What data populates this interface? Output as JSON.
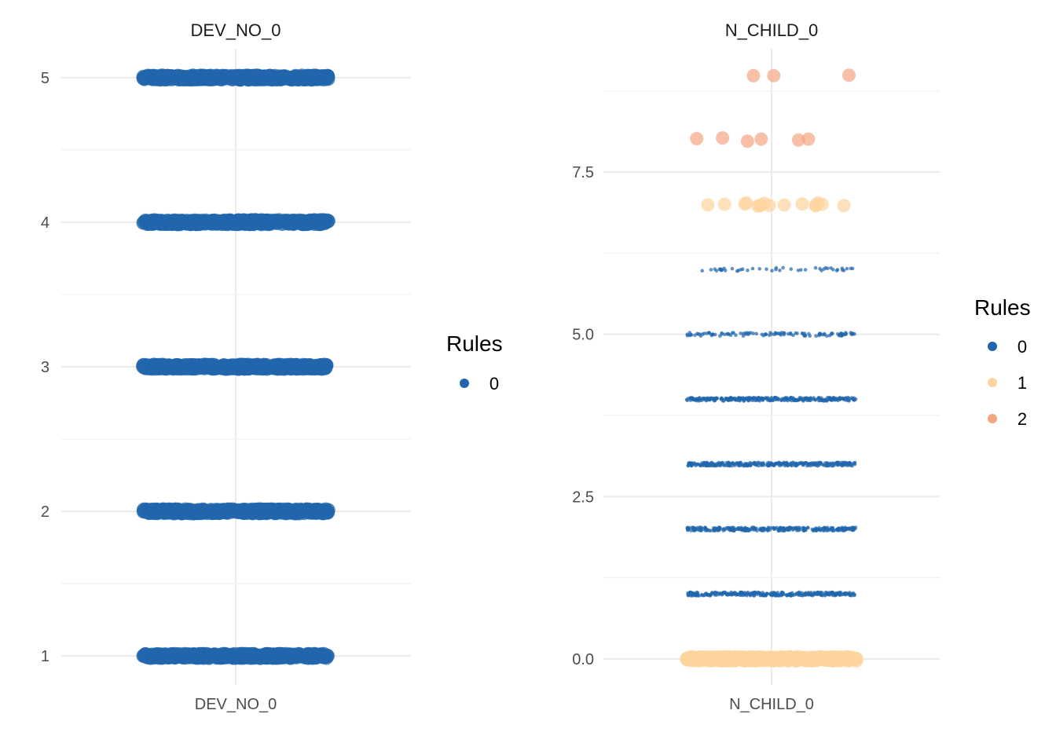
{
  "chart_data": [
    {
      "type": "scatter",
      "title": "DEV_NO_0",
      "xlabel": "DEV_NO_0",
      "ylabel": "",
      "yticks": [
        1,
        2,
        3,
        4,
        5
      ],
      "ylim": [
        0.8,
        5.2
      ],
      "grid": true,
      "legend": {
        "title": "Rules",
        "position": "right",
        "entries": [
          {
            "label": "0",
            "color": "#2166ac"
          }
        ]
      },
      "series": [
        {
          "rule": "0",
          "color": "#2166ac",
          "y_values": [
            1,
            2,
            3,
            4,
            5
          ],
          "points_per_level": 400,
          "size": "large"
        }
      ]
    },
    {
      "type": "scatter",
      "title": "N_CHILD_0",
      "xlabel": "N_CHILD_0",
      "ylabel": "",
      "yticks": [
        0.0,
        2.5,
        5.0,
        7.5
      ],
      "ytick_labels": [
        "0.0",
        "2.5",
        "5.0",
        "7.5"
      ],
      "ylim": [
        -0.4,
        9.4
      ],
      "grid": true,
      "legend": {
        "title": "Rules",
        "position": "right",
        "entries": [
          {
            "label": "0",
            "color": "#2166ac"
          },
          {
            "label": "1",
            "color": "#fdd49e"
          },
          {
            "label": "2",
            "color": "#f4a582"
          }
        ]
      },
      "series": [
        {
          "rule": "1",
          "color": "#fdd49e",
          "y_values": [
            0
          ],
          "points_per_level": 300,
          "size": "large"
        },
        {
          "rule": "0",
          "color": "#2166ac",
          "y_values": [
            1,
            2,
            3,
            4
          ],
          "points_per_level": 300,
          "size": "small"
        },
        {
          "rule": "0",
          "color": "#2166ac",
          "y_values": [
            5
          ],
          "points_per_level": 110,
          "size": "small"
        },
        {
          "rule": "0",
          "color": "#2166ac",
          "y_values": [
            6
          ],
          "points_per_level": 45,
          "size": "small"
        },
        {
          "rule": "1",
          "color": "#fdd49e",
          "y_values": [
            7
          ],
          "points_per_level": 16,
          "size": "medium"
        },
        {
          "rule": "2",
          "color": "#f4a582",
          "y_values": [
            8
          ],
          "points_per_level": 6,
          "size": "medium"
        },
        {
          "rule": "2",
          "color": "#f4a582",
          "y_values": [
            9
          ],
          "points_per_level": 3,
          "size": "medium"
        }
      ]
    }
  ]
}
